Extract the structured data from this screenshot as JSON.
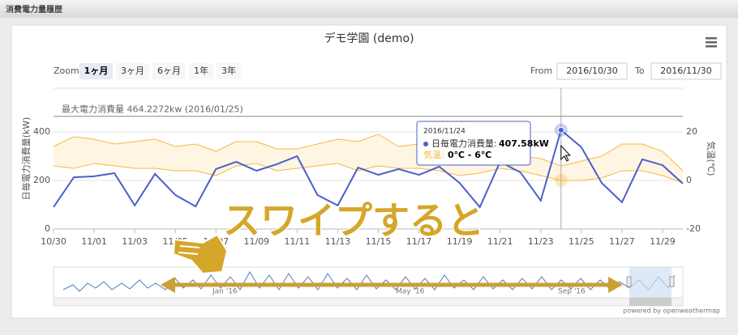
{
  "header": {
    "title": "消費電力量履歴"
  },
  "chart_data": {
    "type": "line",
    "title": "デモ学園 (demo)",
    "zoom": {
      "label": "Zoom",
      "buttons": [
        "1ヶ月",
        "3ヶ月",
        "6ヶ月",
        "1年",
        "3年"
      ]
    },
    "range": {
      "from_label": "From",
      "from": "2016/10/30",
      "to_label": "To",
      "to": "2016/11/30"
    },
    "y_label": "日毎電力消費量(kW)",
    "y2_label": "気温(℃)",
    "categories": [
      "10/30",
      null,
      "11/01",
      null,
      "11/03",
      null,
      "11/05",
      null,
      "11/07",
      null,
      "11/09",
      null,
      "11/11",
      null,
      "11/13",
      null,
      "11/15",
      null,
      "11/17",
      null,
      "11/19",
      null,
      "11/21",
      null,
      "11/23",
      null,
      "11/25",
      null,
      "11/27",
      null,
      "11/29",
      null
    ],
    "series": [
      {
        "color": "#4a5fc9",
        "values": [
          90,
          213,
          217,
          230,
          97,
          227,
          140,
          93,
          247,
          277,
          240,
          267,
          300,
          140,
          97,
          253,
          223,
          247,
          223,
          257,
          190,
          90,
          277,
          233,
          117,
          407.58,
          337,
          190,
          110,
          287,
          263,
          187
        ]
      },
      {
        "color": "#f5b940",
        "axis": "y2",
        "high": [
          14,
          18,
          17,
          15,
          16,
          17,
          14,
          15,
          12,
          16,
          16,
          13,
          13,
          15,
          17,
          16,
          19,
          14,
          15,
          15,
          12,
          13,
          12,
          10,
          9,
          6,
          8,
          10,
          15,
          15,
          12,
          4
        ],
        "low": [
          6,
          5,
          7,
          6,
          5,
          5,
          4,
          4,
          2,
          6,
          7,
          4,
          5,
          6,
          7,
          4,
          6,
          5,
          5,
          4,
          2,
          3,
          5,
          4,
          2,
          0,
          0,
          1,
          4,
          4,
          2,
          -1
        ]
      }
    ],
    "ylim": [
      0,
      600
    ],
    "yticks": [
      0,
      200,
      400
    ],
    "y2lim": [
      -20,
      40
    ],
    "y2ticks": [
      -20,
      0,
      20
    ],
    "grid": true,
    "plot_line": {
      "value": 464.2272,
      "label": "最大電力消費量 464.2272kw (2016/01/25)"
    },
    "tooltip": {
      "index": 25,
      "date": "2016/11/24",
      "label": "日毎電力消費量:",
      "value": "407.58kW",
      "temp_label": "気温:",
      "temp": "0℃ - 6℃"
    },
    "navigator": {
      "labels": [
        "Jan '16",
        "May '16",
        "Sep '16"
      ]
    },
    "overlay": "スワイプすると",
    "credits": "powered by openweathermap"
  }
}
